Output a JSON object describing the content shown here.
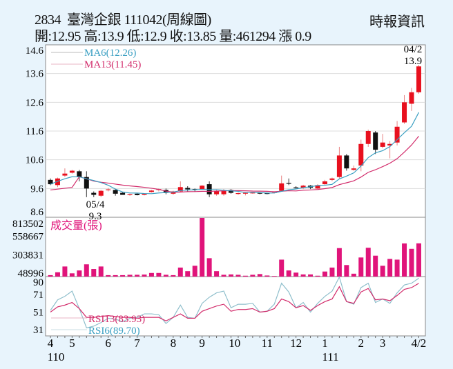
{
  "header": {
    "title": "2834  臺灣企銀 111042(周線圖)",
    "ohlc_line": "開:12.95 高:13.9 低:12.9 收:13.85 量:461294 漲 0.9",
    "source": "時報資訊"
  },
  "colors": {
    "up": "#e8101e",
    "down": "#111111",
    "ma6": "#3a9fc2",
    "ma13": "#d22a6a",
    "volume": "#e0147a",
    "rsi6": "#8fbfcc",
    "rsi13": "#d22a6a",
    "background": "#e8f4fc"
  },
  "chart_data": [
    {
      "type": "candlestick",
      "period": "weekly",
      "y_ticks": [
        "14.6",
        "13.6",
        "12.6",
        "11.6",
        "10.6",
        "9.6",
        "8.6"
      ],
      "ylim": [
        8.6,
        14.6
      ],
      "grid": true,
      "legend": {
        "ma6": "MA6(12.26)",
        "ma13": "MA13(11.45)",
        "placement": "top-left"
      },
      "annotations": {
        "low": {
          "date": "05/4",
          "value": "9.3",
          "index": 5
        },
        "high": {
          "date": "04/2",
          "value": "13.9",
          "index": 51
        }
      },
      "ohlc": [
        [
          9.9,
          9.95,
          9.72,
          9.75
        ],
        [
          9.72,
          9.98,
          9.65,
          9.95
        ],
        [
          10.05,
          10.3,
          10.0,
          10.12
        ],
        [
          10.15,
          10.25,
          10.12,
          10.22
        ],
        [
          10.2,
          10.25,
          9.85,
          10.0
        ],
        [
          10.0,
          10.2,
          9.3,
          9.6
        ],
        [
          9.45,
          9.5,
          9.3,
          9.38
        ],
        [
          9.35,
          9.55,
          9.3,
          9.52
        ],
        [
          9.55,
          9.62,
          9.5,
          9.57
        ],
        [
          9.55,
          9.58,
          9.35,
          9.42
        ],
        [
          9.45,
          9.47,
          9.38,
          9.38
        ],
        [
          9.37,
          9.42,
          9.35,
          9.4
        ],
        [
          9.42,
          9.44,
          9.36,
          9.37
        ],
        [
          9.38,
          9.44,
          9.36,
          9.42
        ],
        [
          9.48,
          9.55,
          9.46,
          9.53
        ],
        [
          9.55,
          9.6,
          9.5,
          9.58
        ],
        [
          9.55,
          9.6,
          9.4,
          9.47
        ],
        [
          9.42,
          9.52,
          9.38,
          9.5
        ],
        [
          9.5,
          9.85,
          9.48,
          9.65
        ],
        [
          9.62,
          9.68,
          9.5,
          9.57
        ],
        [
          9.58,
          9.6,
          9.5,
          9.55
        ],
        [
          9.58,
          9.72,
          9.56,
          9.7
        ],
        [
          9.75,
          9.85,
          9.3,
          9.4
        ],
        [
          9.4,
          9.55,
          9.35,
          9.5
        ],
        [
          9.4,
          9.58,
          9.35,
          9.52
        ],
        [
          9.55,
          9.58,
          9.42,
          9.45
        ],
        [
          9.42,
          9.46,
          9.38,
          9.44
        ],
        [
          9.44,
          9.48,
          9.36,
          9.45
        ],
        [
          9.45,
          9.47,
          9.42,
          9.46
        ],
        [
          9.45,
          9.47,
          9.4,
          9.43
        ],
        [
          9.44,
          9.46,
          9.4,
          9.43
        ],
        [
          9.45,
          9.48,
          9.43,
          9.47
        ],
        [
          9.52,
          10.05,
          9.5,
          9.78
        ],
        [
          9.8,
          9.95,
          9.72,
          9.77
        ],
        [
          9.64,
          9.68,
          9.6,
          9.62
        ],
        [
          9.62,
          9.73,
          9.58,
          9.7
        ],
        [
          9.7,
          9.72,
          9.58,
          9.63
        ],
        [
          9.6,
          9.75,
          9.58,
          9.72
        ],
        [
          9.75,
          9.9,
          9.72,
          9.85
        ],
        [
          9.9,
          9.98,
          9.86,
          9.95
        ],
        [
          10.0,
          11.05,
          9.95,
          10.75
        ],
        [
          10.75,
          10.8,
          10.22,
          10.3
        ],
        [
          10.25,
          10.4,
          10.22,
          10.3
        ],
        [
          10.4,
          11.3,
          10.2,
          11.15
        ],
        [
          11.15,
          11.65,
          11.05,
          11.6
        ],
        [
          11.55,
          11.6,
          10.8,
          10.95
        ],
        [
          11.05,
          11.5,
          11.0,
          11.2
        ],
        [
          11.1,
          11.25,
          10.65,
          11.15
        ],
        [
          11.2,
          11.95,
          11.1,
          11.75
        ],
        [
          11.9,
          12.85,
          11.85,
          12.6
        ],
        [
          12.55,
          13.1,
          12.3,
          12.95
        ],
        [
          12.95,
          13.9,
          12.9,
          13.85
        ]
      ]
    },
    {
      "type": "bar",
      "title": "成交量(張)",
      "y_ticks": [
        "813502",
        "558667",
        "303831",
        "48996"
      ],
      "ylim": [
        0,
        813502
      ],
      "values": [
        20000,
        60000,
        140000,
        45000,
        85000,
        170000,
        105000,
        140000,
        20000,
        20000,
        20000,
        25000,
        25000,
        28000,
        50000,
        50000,
        25000,
        20000,
        125000,
        75000,
        150000,
        813502,
        255000,
        75000,
        25000,
        30000,
        25000,
        12000,
        25000,
        35000,
        15000,
        8000,
        235000,
        85000,
        55000,
        30000,
        30000,
        12000,
        70000,
        125000,
        395000,
        160000,
        40000,
        265000,
        400000,
        290000,
        150000,
        245000,
        235000,
        460000,
        385000,
        461294
      ]
    },
    {
      "type": "line",
      "y_ticks": [
        "90",
        "71",
        "51",
        "31"
      ],
      "series": [
        {
          "name": "RSI13(83.93)",
          "values": [
            51,
            57,
            59,
            62,
            55,
            45,
            45,
            46,
            47,
            46,
            45,
            45,
            44,
            45,
            45,
            45,
            41,
            45,
            49,
            44,
            44,
            52,
            55,
            58,
            60,
            52,
            54,
            54,
            55,
            51,
            52,
            55,
            66,
            63,
            56,
            58.5,
            53,
            58.5,
            63,
            66,
            80,
            63,
            61,
            74,
            78,
            65,
            66,
            64,
            70,
            77,
            79,
            83.93
          ]
        },
        {
          "name": "RSI6(89.70)",
          "values": [
            53,
            65,
            69,
            75,
            55,
            33,
            35,
            39,
            44,
            43,
            40,
            44,
            45,
            49,
            49,
            48,
            38,
            45,
            59,
            45,
            44,
            61,
            68,
            73,
            75,
            56,
            60,
            60,
            61,
            51,
            52,
            60,
            84,
            74,
            56,
            62,
            51,
            61,
            69,
            75,
            91,
            63,
            60,
            79,
            84,
            62,
            66,
            61,
            73,
            82,
            84,
            89.7
          ]
        }
      ]
    }
  ],
  "x_axis": {
    "ticks": [
      {
        "label": "4",
        "index": 0
      },
      {
        "label": "5",
        "index": 3
      },
      {
        "label": "6",
        "index": 8
      },
      {
        "label": "7",
        "index": 12
      },
      {
        "label": "8",
        "index": 17
      },
      {
        "label": "9",
        "index": 21
      },
      {
        "label": "10",
        "index": 25.5
      },
      {
        "label": "11",
        "index": 30
      },
      {
        "label": "12",
        "index": 34
      },
      {
        "label": "1",
        "index": 38
      },
      {
        "label": "2",
        "index": 43
      },
      {
        "label": "3",
        "index": 46
      },
      {
        "label": "4/2",
        "index": 51
      }
    ],
    "years": [
      {
        "label": "110",
        "index": 0
      },
      {
        "label": "111",
        "index": 38
      }
    ]
  }
}
